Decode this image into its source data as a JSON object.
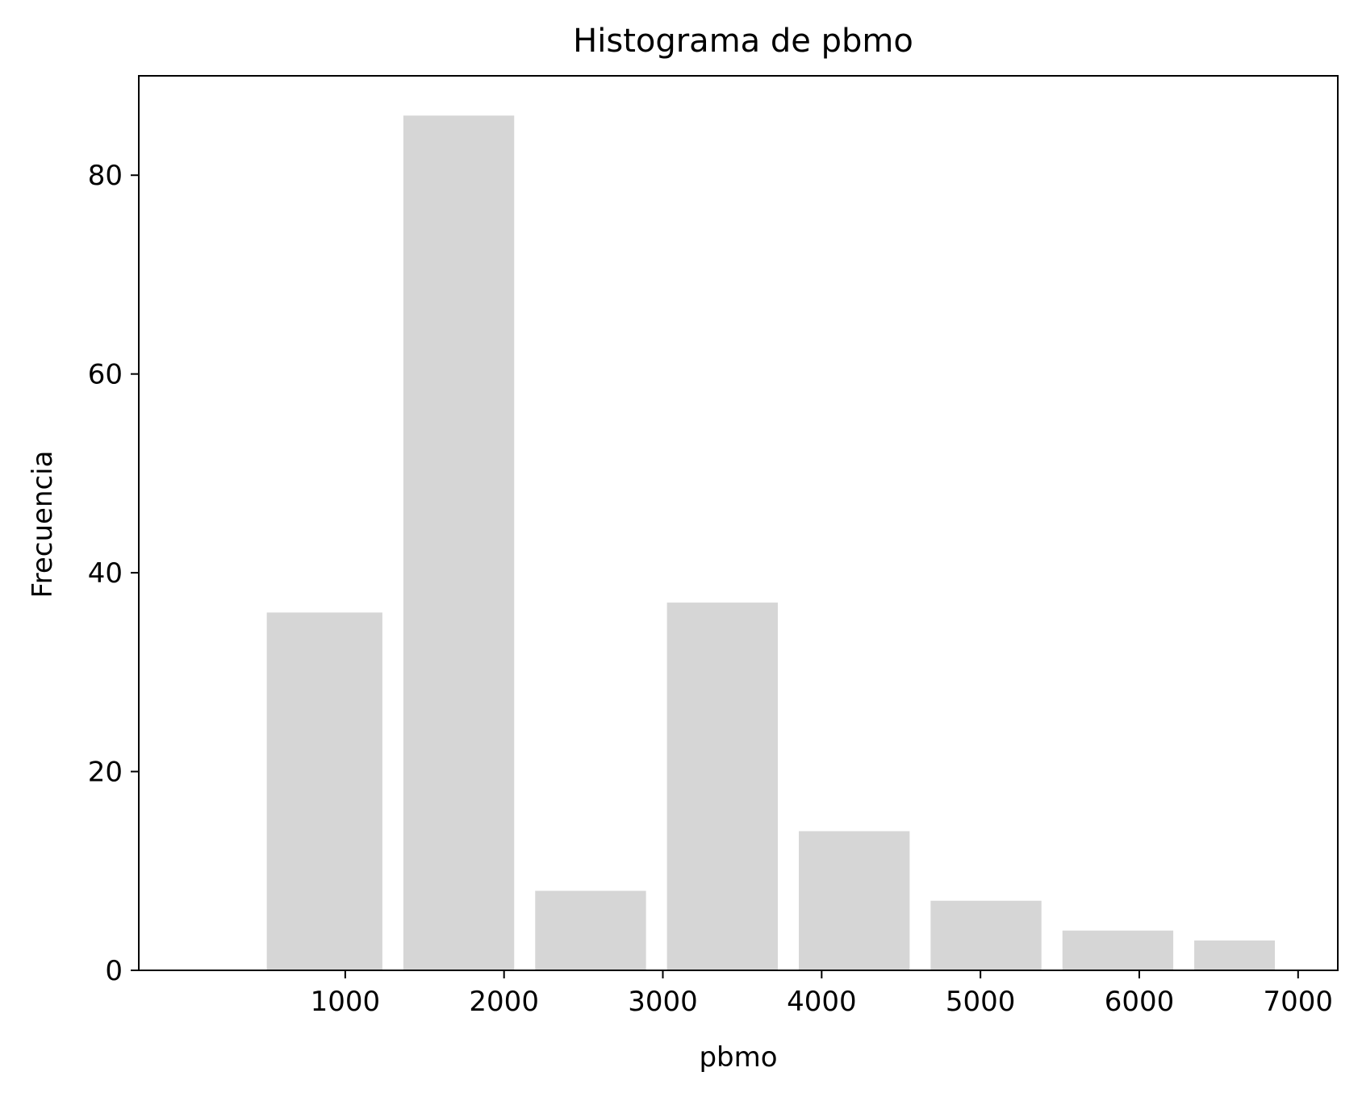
{
  "chart_data": {
    "type": "bar",
    "title": "Histograma de pbmo",
    "xlabel": "pbmo",
    "ylabel": "Frecuencia",
    "bins": [
      {
        "start": 440,
        "end": 1300,
        "count": 36
      },
      {
        "start": 1300,
        "end": 2130,
        "count": 86
      },
      {
        "start": 2130,
        "end": 2960,
        "count": 8
      },
      {
        "start": 2960,
        "end": 3790,
        "count": 37
      },
      {
        "start": 3790,
        "end": 4620,
        "count": 14
      },
      {
        "start": 4620,
        "end": 5450,
        "count": 7
      },
      {
        "start": 5450,
        "end": 6280,
        "count": 4
      },
      {
        "start": 6280,
        "end": 6920,
        "count": 3
      }
    ],
    "xlim": [
      -300,
      7250
    ],
    "ylim": [
      0,
      90
    ],
    "xticks": [
      1000,
      2000,
      3000,
      4000,
      5000,
      6000,
      7000
    ],
    "yticks": [
      0,
      20,
      40,
      60,
      80
    ],
    "bar_color": "#d6d6d6",
    "grid": false
  }
}
